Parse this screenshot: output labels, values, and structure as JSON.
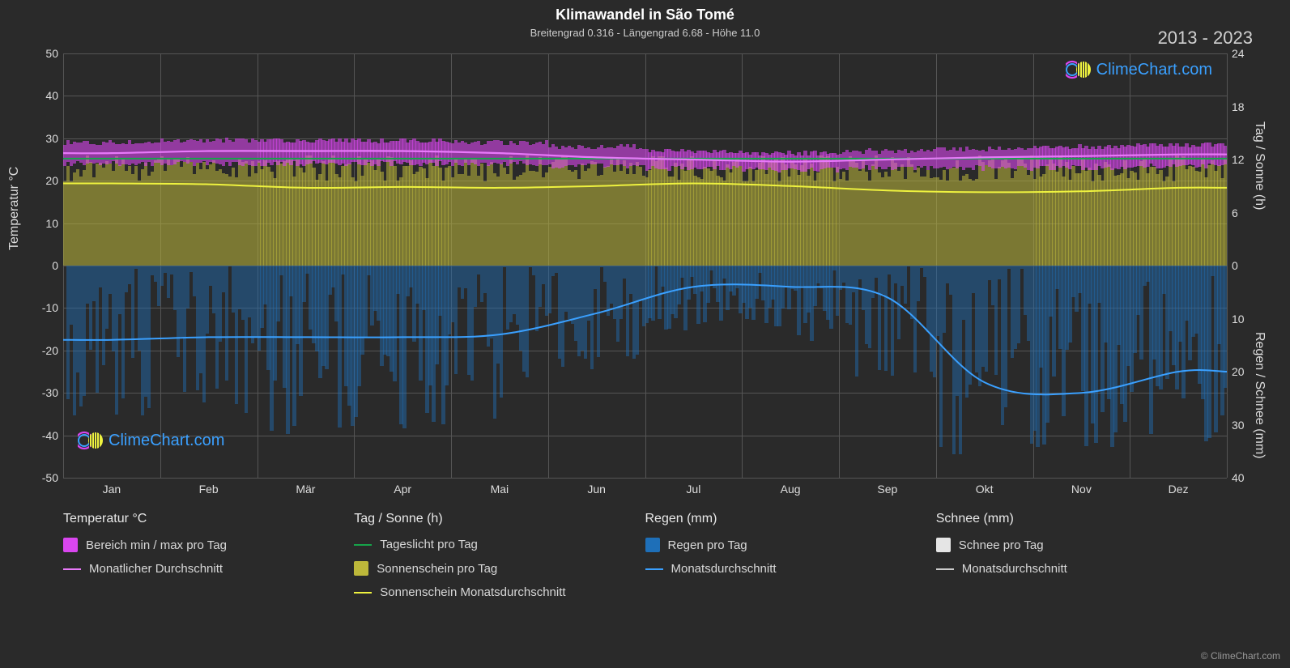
{
  "title": "Klimawandel in São Tomé",
  "subtitle": "Breitengrad 0.316 - Längengrad 6.68 - Höhe 11.0",
  "year_range": "2013 - 2023",
  "copyright": "© ClimeChart.com",
  "brand": "ClimeChart.com",
  "plot": {
    "background": "#2a2a2a",
    "grid_color": "#555555",
    "left_axis": {
      "label": "Temperatur °C",
      "min": -50,
      "max": 50,
      "step": 10,
      "ticks": [
        50,
        40,
        30,
        20,
        10,
        0,
        -10,
        -20,
        -30,
        -40,
        -50
      ]
    },
    "right_axis_top": {
      "label": "Tag / Sonne (h)",
      "min": 0,
      "max": 24,
      "step": 6,
      "ticks": [
        24,
        18,
        12,
        6,
        0
      ]
    },
    "right_axis_bottom": {
      "label": "Regen / Schnee (mm)",
      "min": 0,
      "max": 40,
      "step": 10,
      "ticks": [
        0,
        10,
        20,
        30,
        40
      ]
    },
    "months": [
      "Jan",
      "Feb",
      "Mär",
      "Apr",
      "Mai",
      "Jun",
      "Jul",
      "Aug",
      "Sep",
      "Okt",
      "Nov",
      "Dez"
    ]
  },
  "colors": {
    "temp_range_fill": "#d946ef",
    "temp_range_fill_opacity": 0.6,
    "temp_avg_line": "#e879f9",
    "daylight_line": "#16a34a",
    "sunshine_fill": "#bdb83a",
    "sunshine_fill_opacity": 0.55,
    "sunshine_line": "#eef23f",
    "rain_fill": "#1e6fb8",
    "rain_fill_opacity": 0.45,
    "rain_line": "#3aa0ff",
    "snow_fill": "#e5e5e5",
    "snow_line": "#cccccc"
  },
  "series": {
    "temp_min_monthly": [
      24,
      24,
      24,
      24,
      24,
      23.5,
      23,
      22.5,
      23,
      23,
      23,
      23.5
    ],
    "temp_max_monthly": [
      29,
      29.5,
      29.5,
      29.5,
      29,
      28,
      27,
      26.5,
      27,
      27.5,
      28,
      28.5
    ],
    "temp_avg_monthly": [
      26.5,
      27,
      27,
      27,
      26.5,
      25.5,
      25,
      24.5,
      25,
      25.5,
      25.8,
      26.2
    ],
    "daylight_hours": [
      12.1,
      12.1,
      12.1,
      12.1,
      12.1,
      12.1,
      12.1,
      12.1,
      12.1,
      12.1,
      12.1,
      12.1
    ],
    "sunshine_daily_max": [
      11,
      11,
      11,
      11,
      11,
      11,
      11,
      11,
      11,
      11,
      11,
      11
    ],
    "sunshine_avg_monthly": [
      9.3,
      9.2,
      8.8,
      8.9,
      8.8,
      9.0,
      9.3,
      9.0,
      8.5,
      8.3,
      8.4,
      8.8
    ],
    "rain_daily_max_mm": [
      35,
      35,
      36,
      35,
      34,
      22,
      14,
      16,
      24,
      40,
      40,
      38
    ],
    "rain_avg_monthly_mm": [
      14,
      13.5,
      13.5,
      13.5,
      13,
      9,
      4,
      4,
      6,
      22,
      24,
      20
    ],
    "snow_daily_max_mm": [
      0,
      0,
      0,
      0,
      0,
      0,
      0,
      0,
      0,
      0,
      0,
      0
    ],
    "snow_avg_monthly_mm": [
      0,
      0,
      0,
      0,
      0,
      0,
      0,
      0,
      0,
      0,
      0,
      0
    ]
  },
  "legend": {
    "groups": [
      {
        "header": "Temperatur °C",
        "items": [
          {
            "label": "Bereich min / max pro Tag",
            "type": "swatch",
            "color": "#d946ef"
          },
          {
            "label": "Monatlicher Durchschnitt",
            "type": "line",
            "color": "#e879f9"
          }
        ]
      },
      {
        "header": "Tag / Sonne (h)",
        "items": [
          {
            "label": "Tageslicht pro Tag",
            "type": "line",
            "color": "#16a34a"
          },
          {
            "label": "Sonnenschein pro Tag",
            "type": "swatch",
            "color": "#bdb83a"
          },
          {
            "label": "Sonnenschein Monatsdurchschnitt",
            "type": "line",
            "color": "#eef23f"
          }
        ]
      },
      {
        "header": "Regen (mm)",
        "items": [
          {
            "label": "Regen pro Tag",
            "type": "swatch",
            "color": "#1e6fb8"
          },
          {
            "label": "Monatsdurchschnitt",
            "type": "line",
            "color": "#3aa0ff"
          }
        ]
      },
      {
        "header": "Schnee (mm)",
        "items": [
          {
            "label": "Schnee pro Tag",
            "type": "swatch",
            "color": "#e5e5e5"
          },
          {
            "label": "Monatsdurchschnitt",
            "type": "line",
            "color": "#cccccc"
          }
        ]
      }
    ]
  }
}
